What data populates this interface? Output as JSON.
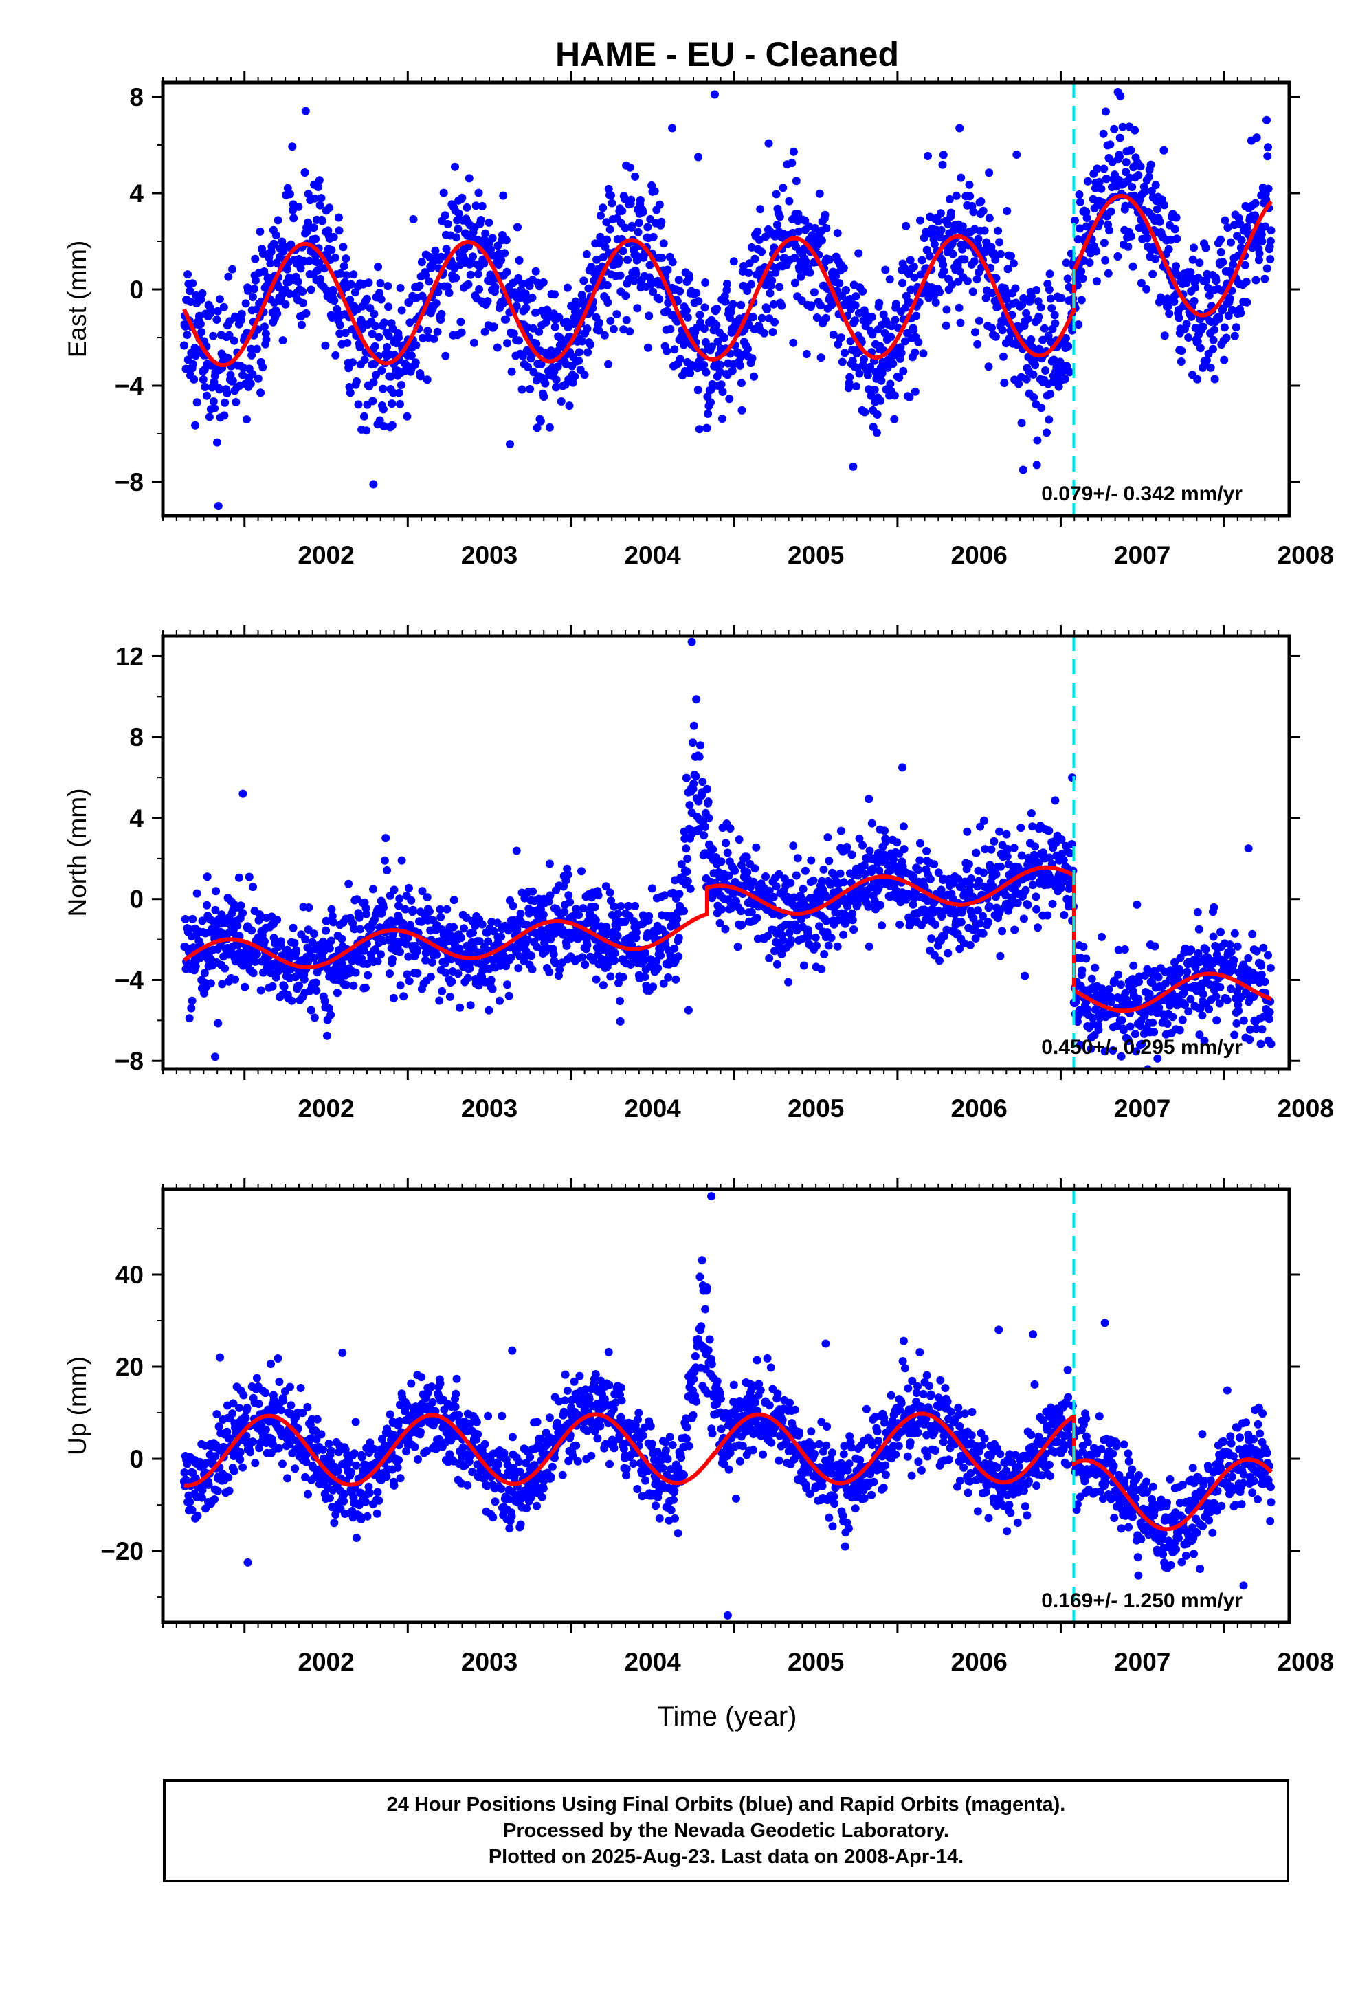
{
  "figure": {
    "title": "HAME  - EU - Cleaned",
    "x_axis_label": "Time (year)"
  },
  "colors": {
    "final_orbits": "#0000ff",
    "rapid_orbits": "#ff00ff",
    "model": "#ff0000",
    "equipment_change": "#00e5e5"
  },
  "footer": {
    "line1": "24 Hour Positions Using Final Orbits (blue) and Rapid Orbits (magenta).",
    "line2": "Processed by the Nevada Geodetic Laboratory.",
    "line3": "Plotted on 2025-Aug-23. Last data on 2008-Apr-14."
  },
  "chart_data": [
    {
      "type": "scatter",
      "component": "East",
      "ylabel": "East (mm)",
      "rate_label": "0.079+/- 0.342 mm/yr",
      "xlim": [
        2001.5,
        2008.4
      ],
      "ylim": [
        -9.4,
        8.6
      ],
      "yticks": [
        -8,
        -4,
        0,
        4,
        8
      ],
      "ytick_labels": [
        "−8",
        "−4",
        "0",
        "4",
        "8"
      ],
      "xticks": [
        2002,
        2003,
        2004,
        2005,
        2006,
        2007,
        2008
      ],
      "xtick_labels": [
        "2002",
        "2003",
        "2004",
        "2005",
        "2006",
        "2007",
        "2008"
      ],
      "data_start": 2001.63,
      "data_end": 2008.29,
      "equipment_change": 2007.08,
      "offset_after_change": 0,
      "model": {
        "a0": -0.4,
        "trend": 0.079,
        "amp": 2.5,
        "phase": 0.12,
        "amp2": 0.0,
        "phase2": 0.0,
        "steps": [
          [
            2007.08,
            1.6
          ]
        ]
      },
      "scatter_sigma": 1.45,
      "outliers": [
        [
          2004.88,
          8.1
        ],
        [
          2007.35,
          8.2
        ],
        [
          2001.84,
          -9.0
        ],
        [
          2002.79,
          -8.1
        ],
        [
          2006.77,
          -7.5
        ],
        [
          2004.62,
          6.7
        ],
        [
          2006.38,
          6.7
        ],
        [
          2004.78,
          5.5
        ],
        [
          2006.73,
          5.6
        ]
      ]
    },
    {
      "type": "scatter",
      "component": "North",
      "ylabel": "North (mm)",
      "rate_label": "0.450+/- 0.295 mm/yr",
      "xlim": [
        2001.5,
        2008.4
      ],
      "ylim": [
        -8.4,
        13.0
      ],
      "yticks": [
        -8,
        -4,
        0,
        4,
        8,
        12
      ],
      "ytick_labels": [
        "−8",
        "−4",
        "0",
        "4",
        "8",
        "12"
      ],
      "xticks": [
        2002,
        2003,
        2004,
        2005,
        2006,
        2007,
        2008
      ],
      "xtick_labels": [
        "2002",
        "2003",
        "2004",
        "2005",
        "2006",
        "2007",
        "2008"
      ],
      "data_start": 2001.63,
      "data_end": 2008.29,
      "equipment_change": 2007.08,
      "model": {
        "a0": -1.4,
        "trend": 0.45,
        "amp": 0.8,
        "phase": 0.65,
        "amp2": 0.0,
        "phase2": 0.0,
        "steps": [
          [
            2004.83,
            1.3
          ],
          [
            2007.08,
            -5.7
          ]
        ]
      },
      "scatter_sigma": 1.2,
      "anomaly": {
        "start": 2004.66,
        "end": 2004.88,
        "peak": 2004.76,
        "height": 8.0
      },
      "outliers": [
        [
          2004.74,
          12.7
        ],
        [
          2001.82,
          -7.8
        ],
        [
          2001.99,
          5.2
        ],
        [
          2006.03,
          6.5
        ],
        [
          2007.07,
          6.0
        ],
        [
          2004.72,
          -5.5
        ],
        [
          2006.78,
          -3.8
        ],
        [
          2007.88,
          -7.0
        ],
        [
          2008.15,
          2.5
        ]
      ]
    },
    {
      "type": "scatter",
      "component": "Up",
      "ylabel": "Up (mm)",
      "rate_label": "0.169+/- 1.250 mm/yr",
      "xlim": [
        2001.5,
        2008.4
      ],
      "ylim": [
        -35.5,
        58.5
      ],
      "yticks": [
        -20,
        0,
        20,
        40
      ],
      "ytick_labels": [
        "−20",
        "0",
        "20",
        "40"
      ],
      "xticks": [
        2002,
        2003,
        2004,
        2005,
        2006,
        2007,
        2008
      ],
      "xtick_labels": [
        "2002",
        "2003",
        "2004",
        "2005",
        "2006",
        "2007",
        "2008"
      ],
      "data_start": 2001.63,
      "data_end": 2008.29,
      "equipment_change": 2007.08,
      "model": {
        "a0": 2.3,
        "trend": 0.169,
        "amp": 7.5,
        "phase": 0.9,
        "amp2": 0.0,
        "phase2": 0.0,
        "steps": [
          [
            2004.88,
            -0.2
          ],
          [
            2007.08,
            -10.3
          ]
        ]
      },
      "scatter_sigma": 4.6,
      "anomaly": {
        "start": 2004.63,
        "end": 2004.92,
        "peak": 2004.8,
        "height": 32.0
      },
      "outliers": [
        [
          2004.86,
          57.0
        ],
        [
          2004.96,
          -34.0
        ],
        [
          2007.27,
          29.5
        ],
        [
          2006.62,
          28.0
        ],
        [
          2006.83,
          27.0
        ],
        [
          2002.02,
          -22.5
        ],
        [
          2008.12,
          -27.5
        ],
        [
          2001.85,
          22.0
        ],
        [
          2002.6,
          23.0
        ],
        [
          2003.64,
          23.5
        ],
        [
          2005.56,
          25.0
        ]
      ]
    }
  ]
}
